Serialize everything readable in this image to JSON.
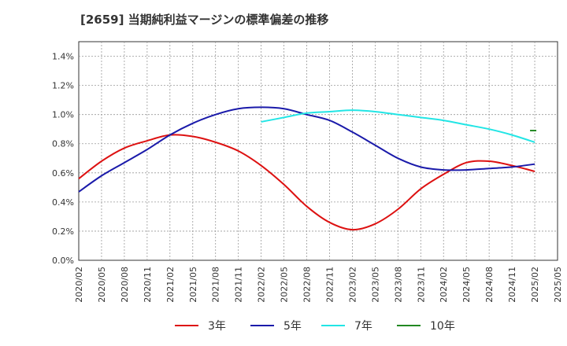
{
  "chart_data": {
    "type": "line",
    "title": "[2659]  当期純利益マージンの標準偏差の推移",
    "xlabel": "",
    "ylabel": "",
    "ylim": [
      0.0,
      1.5
    ],
    "y_ticks": [
      "0.0%",
      "0.2%",
      "0.4%",
      "0.6%",
      "0.8%",
      "1.0%",
      "1.2%",
      "1.4%"
    ],
    "y_tick_values": [
      0.0,
      0.2,
      0.4,
      0.6,
      0.8,
      1.0,
      1.2,
      1.4
    ],
    "x_ticks": [
      "2020/02",
      "2020/05",
      "2020/08",
      "2020/11",
      "2021/02",
      "2021/05",
      "2021/08",
      "2021/11",
      "2022/02",
      "2022/05",
      "2022/08",
      "2022/11",
      "2023/02",
      "2023/05",
      "2023/08",
      "2023/11",
      "2024/02",
      "2024/05",
      "2024/08",
      "2024/11",
      "2025/02",
      "2025/05"
    ],
    "x": [
      "2020/02",
      "2020/05",
      "2020/08",
      "2020/11",
      "2021/02",
      "2021/05",
      "2021/08",
      "2021/11",
      "2022/02",
      "2022/05",
      "2022/08",
      "2022/11",
      "2023/02",
      "2023/05",
      "2023/08",
      "2023/11",
      "2024/02",
      "2024/05",
      "2024/08",
      "2024/11",
      "2025/02"
    ],
    "grid": true,
    "legend_position": "bottom",
    "series": [
      {
        "name": "3年",
        "color": "#dd1111",
        "values": [
          0.56,
          0.68,
          0.77,
          0.82,
          0.86,
          0.85,
          0.81,
          0.75,
          0.65,
          0.52,
          0.37,
          0.26,
          0.21,
          0.25,
          0.35,
          0.49,
          0.59,
          0.67,
          0.68,
          0.65,
          0.61
        ]
      },
      {
        "name": "5年",
        "color": "#1a1aaa",
        "values": [
          0.47,
          0.58,
          0.67,
          0.76,
          0.86,
          0.94,
          1.0,
          1.04,
          1.05,
          1.04,
          1.0,
          0.96,
          0.88,
          0.79,
          0.7,
          0.64,
          0.62,
          0.62,
          0.63,
          0.64,
          0.66
        ]
      },
      {
        "name": "7年",
        "color": "#22e5e5",
        "values": [
          null,
          null,
          null,
          null,
          null,
          null,
          null,
          null,
          0.95,
          0.98,
          1.01,
          1.02,
          1.03,
          1.02,
          1.0,
          0.98,
          0.96,
          0.93,
          0.9,
          0.86,
          0.81
        ]
      },
      {
        "name": "10年",
        "color": "#228822",
        "values": [
          null,
          null,
          null,
          null,
          null,
          null,
          null,
          null,
          null,
          null,
          null,
          null,
          null,
          null,
          null,
          null,
          null,
          null,
          null,
          null,
          0.89
        ]
      }
    ]
  }
}
